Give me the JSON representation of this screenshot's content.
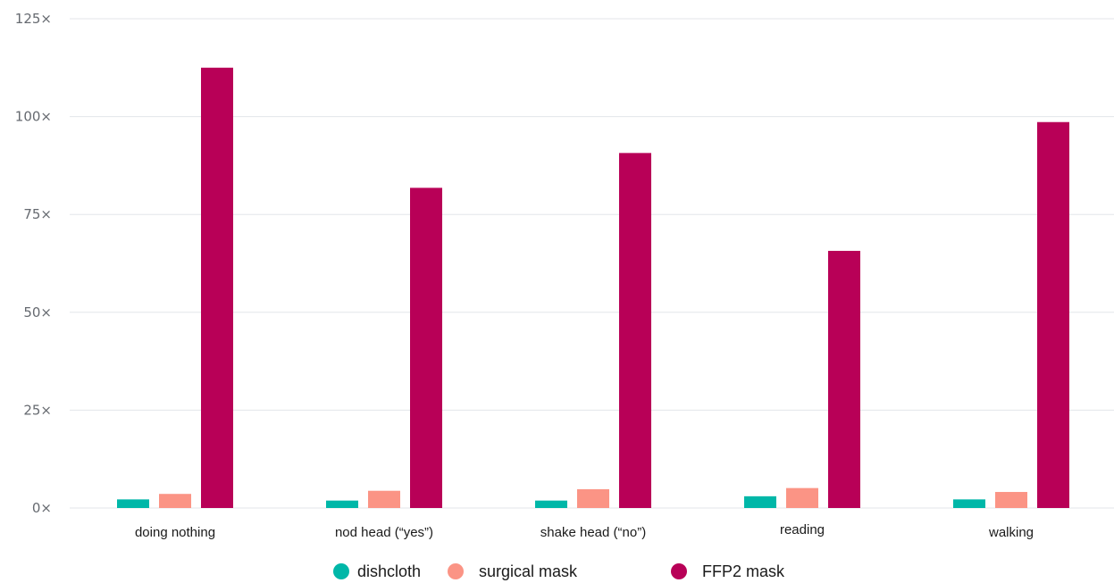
{
  "chart_data": {
    "type": "bar",
    "categories": [
      "doing nothing",
      "nod head (“yes”)",
      "shake head (“no”)",
      "reading",
      "walking"
    ],
    "series": [
      {
        "name": "dishcloth",
        "color": "#00b7a8",
        "values": [
          2.2,
          1.9,
          1.9,
          3.0,
          2.2
        ]
      },
      {
        "name": "surgical mask",
        "color": "#fb9485",
        "values": [
          3.6,
          4.4,
          4.8,
          5.1,
          4.1
        ]
      },
      {
        "name": "FFP2 mask",
        "color": "#b80057",
        "values": [
          112.5,
          81.8,
          90.7,
          65.7,
          98.6
        ]
      }
    ],
    "y_ticks": [
      0,
      25,
      50,
      75,
      100,
      125
    ],
    "y_tick_suffix": "×",
    "ylim": [
      0,
      125
    ],
    "grid": true,
    "legend": "bottom",
    "xlabel": "",
    "ylabel": "",
    "title": ""
  }
}
